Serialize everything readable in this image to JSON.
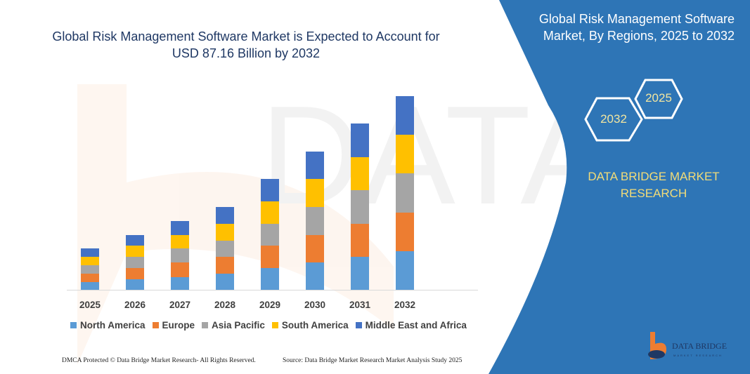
{
  "title": "Global Risk Management Software Market is Expected to Account for USD 87.16 Billion by 2032",
  "side_panel": {
    "title": "Global Risk Management Software Market, By Regions, 2025 to 2032",
    "hex_start": "2025",
    "hex_end": "2032",
    "brand": "DATA BRIDGE MARKET RESEARCH",
    "logo_text": "DATA BRIDGE",
    "panel_color": "#2e75b6"
  },
  "footer": {
    "left": "DMCA Protected © Data Bridge Market Research- All Rights Reserved.",
    "right": "Source: Data Bridge Market Research Market Analysis Study 2025"
  },
  "chart_data": {
    "type": "bar",
    "stacked": true,
    "title": "",
    "xlabel": "",
    "ylabel": "",
    "grid": false,
    "legend_position": "bottom",
    "categories": [
      "2025",
      "2026",
      "2027",
      "2028",
      "2029",
      "2030",
      "2031",
      "2032"
    ],
    "series": [
      {
        "name": "North America",
        "color": "#5b9bd5",
        "values": [
          11,
          15,
          18,
          23,
          31,
          39,
          47,
          55
        ]
      },
      {
        "name": "Europe",
        "color": "#ed7d31",
        "values": [
          12,
          16,
          21,
          24,
          32,
          39,
          47,
          55
        ]
      },
      {
        "name": "Asia Pacific",
        "color": "#a5a5a5",
        "values": [
          12,
          16,
          20,
          23,
          31,
          40,
          48,
          56
        ]
      },
      {
        "name": "South America",
        "color": "#ffc000",
        "values": [
          12,
          16,
          19,
          24,
          32,
          40,
          47,
          55
        ]
      },
      {
        "name": "Middle East and Africa",
        "color": "#4472c4",
        "values": [
          12,
          15,
          20,
          24,
          32,
          39,
          48,
          55
        ]
      }
    ]
  }
}
